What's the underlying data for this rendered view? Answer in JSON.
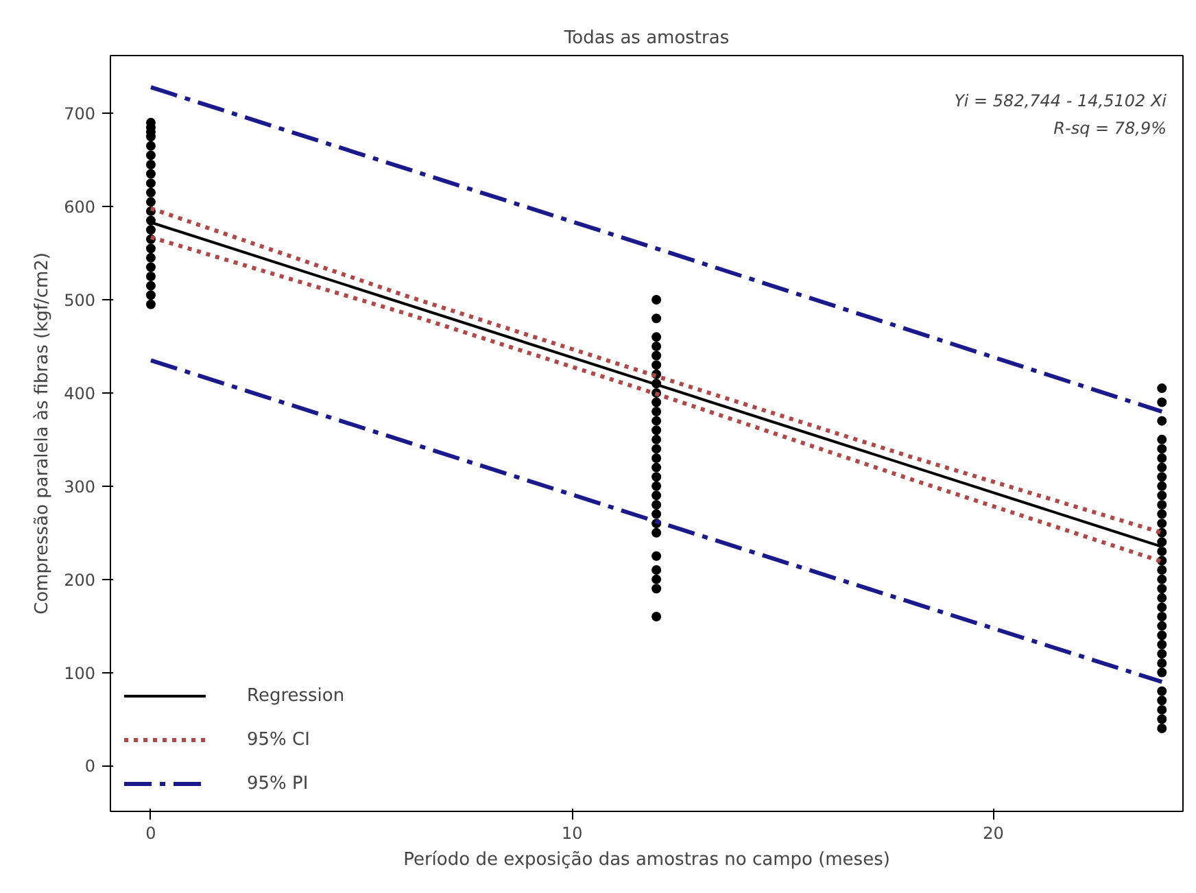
{
  "chart_data": {
    "type": "line",
    "title": "Todas as amostras",
    "xlabel": "Período de exposição das amostras no campo (meses)",
    "ylabel": "Compressão paralela às fibras (kgf/cm2)",
    "annotations": [
      "Yi = 582,744 - 14,5102 Xi",
      "R-sq = 78,9%"
    ],
    "xlim": [
      -0.96,
      24.5
    ],
    "ylim": [
      -49,
      762
    ],
    "xticks": [
      0,
      10,
      20
    ],
    "yticks": [
      0,
      100,
      200,
      300,
      400,
      500,
      600,
      700
    ],
    "grid": false,
    "legend": "bottom left",
    "series": [
      {
        "type": "scatter",
        "color": "#000000",
        "marker": "circle",
        "x": [
          0,
          0,
          0,
          0,
          0,
          0,
          0,
          0,
          0,
          0,
          0,
          0,
          0,
          0,
          0,
          0,
          0,
          0,
          0,
          0,
          0,
          0,
          12,
          12,
          12,
          12,
          12,
          12,
          12,
          12,
          12,
          12,
          12,
          12,
          12,
          12,
          12,
          12,
          12,
          12,
          12,
          12,
          12,
          12,
          12,
          12,
          12,
          12,
          12,
          12,
          12,
          24,
          24,
          24,
          24,
          24,
          24,
          24,
          24,
          24,
          24,
          24,
          24,
          24,
          24,
          24,
          24,
          24,
          24,
          24,
          24,
          24,
          24,
          24,
          24,
          24,
          24,
          24,
          24,
          24,
          24,
          24,
          24,
          24,
          24
        ],
        "values": [
          495,
          505,
          515,
          525,
          535,
          545,
          555,
          565,
          575,
          585,
          595,
          605,
          615,
          625,
          635,
          645,
          655,
          665,
          675,
          680,
          685,
          690,
          160,
          190,
          200,
          210,
          225,
          250,
          260,
          270,
          280,
          290,
          300,
          310,
          320,
          330,
          340,
          350,
          360,
          370,
          380,
          390,
          400,
          410,
          420,
          430,
          440,
          450,
          460,
          480,
          500,
          40,
          50,
          60,
          70,
          80,
          100,
          110,
          120,
          130,
          140,
          150,
          160,
          170,
          180,
          190,
          200,
          210,
          220,
          230,
          240,
          250,
          260,
          270,
          280,
          290,
          300,
          310,
          320,
          330,
          340,
          350,
          370,
          390,
          405
        ]
      },
      {
        "name": "Regression",
        "color": "#000000",
        "line_style": "solid",
        "x": [
          0,
          12,
          24
        ],
        "values": [
          583,
          409,
          235
        ]
      },
      {
        "name": "95% CI",
        "color": "#b04848",
        "line_style": "dotted",
        "x": [
          0,
          6,
          12,
          18,
          24
        ],
        "values": [
          598,
          505,
          418,
          332,
          250
        ]
      },
      {
        "color": "#b04848",
        "line_style": "dotted",
        "x": [
          0,
          6,
          12,
          18,
          24
        ],
        "values": [
          567,
          486,
          399,
          308,
          219
        ]
      },
      {
        "name": "95% PI",
        "color": "#1a1a8c",
        "line_style": "dashed",
        "x": [
          0,
          12,
          24
        ],
        "values": [
          728,
          555,
          380
        ]
      },
      {
        "color": "#1a1a8c",
        "line_style": "dashed",
        "x": [
          0,
          12,
          24
        ],
        "values": [
          435,
          262,
          90
        ]
      }
    ]
  }
}
